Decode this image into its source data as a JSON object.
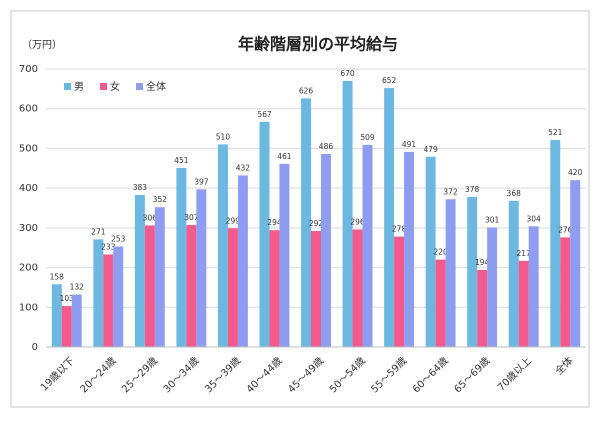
{
  "chart_data": {
    "type": "bar",
    "title": "年齢階層別の平均給与",
    "y_label": "（万円）",
    "categories": [
      "19歳以下",
      "20～24歳",
      "25～29歳",
      "30～34歳",
      "35～39歳",
      "40～44歳",
      "45～49歳",
      "50～54歳",
      "55～59歳",
      "60～64歳",
      "65～69歳",
      "70歳以上",
      "全体"
    ],
    "series": [
      {
        "name": "男",
        "color": "#6cb8e0",
        "values": [
          158,
          271,
          383,
          451,
          510,
          567,
          626,
          670,
          652,
          479,
          378,
          368,
          521
        ]
      },
      {
        "name": "女",
        "color": "#f25b8c",
        "values": [
          103,
          233,
          306,
          307,
          299,
          294,
          292,
          296,
          278,
          220,
          194,
          217,
          276
        ]
      },
      {
        "name": "全体",
        "color": "#8f9df0",
        "values": [
          132,
          253,
          352,
          397,
          432,
          461,
          486,
          509,
          491,
          372,
          301,
          304,
          420
        ]
      }
    ],
    "ylim": [
      0,
      700
    ],
    "yticks": [
      0,
      100,
      200,
      300,
      400,
      500,
      600,
      700
    ],
    "grid": true,
    "legend": "top-left"
  }
}
